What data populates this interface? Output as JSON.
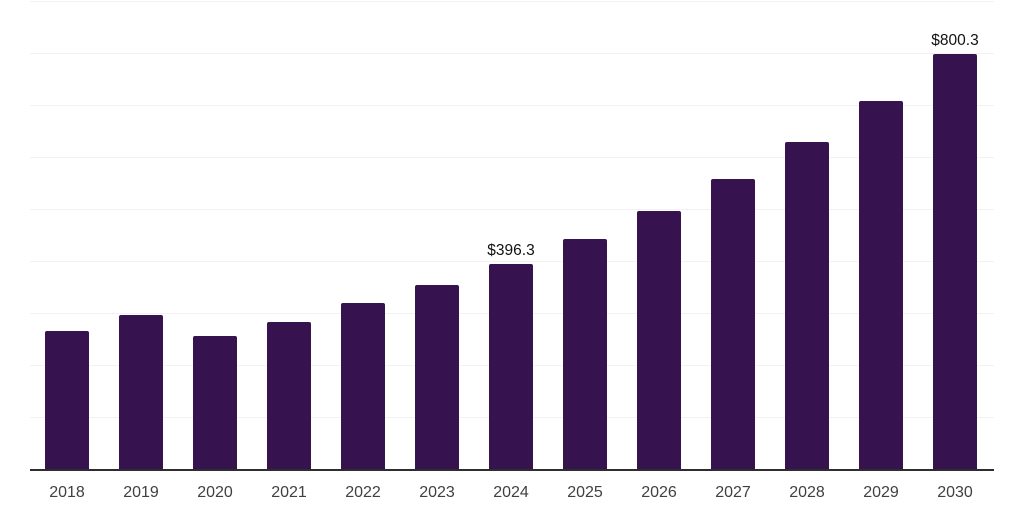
{
  "chart": {
    "background_color": "#FFFFFF",
    "bar_color": "#36124E",
    "grid_color": "#F2F2F2",
    "axis_line_color": "#2E2E2E",
    "tick_label_color": "#404040",
    "data_label_color": "#111111"
  },
  "chart_data": {
    "type": "bar",
    "title": "",
    "xlabel": "",
    "ylabel": "",
    "categories": [
      "2018",
      "2019",
      "2020",
      "2021",
      "2022",
      "2023",
      "2024",
      "2025",
      "2026",
      "2027",
      "2028",
      "2029",
      "2030"
    ],
    "values": [
      267,
      299,
      258,
      285,
      321,
      356,
      396.3,
      444,
      498,
      560,
      631,
      710,
      800.3
    ],
    "data_labels": {
      "2024": "$396.3",
      "2030": "$800.3"
    },
    "ylim": [
      0,
      900
    ],
    "grid": "horizontal",
    "gridline_interval": 100,
    "y_axis_tick_labels": "none",
    "legend": "none"
  }
}
